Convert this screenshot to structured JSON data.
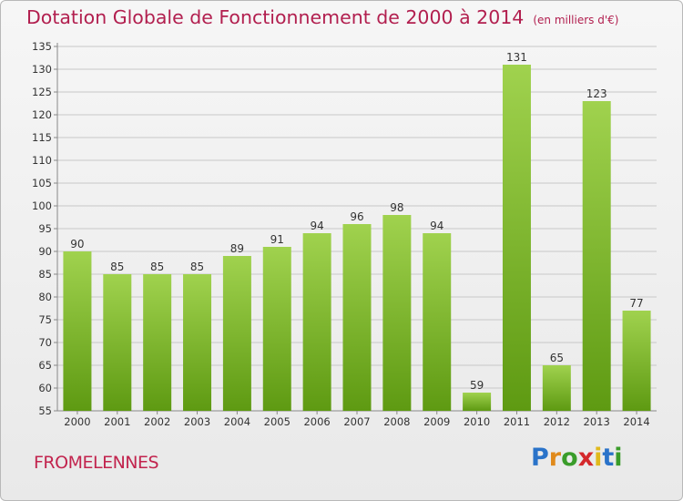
{
  "header": {
    "title": "Dotation Globale de Fonctionnement de 2000 à 2014",
    "unit_note": "(en milliers d'€)"
  },
  "footer": {
    "commune": "FROMELENNES",
    "logo_letters": [
      "P",
      "r",
      "o",
      "x",
      "i",
      "t",
      "i"
    ],
    "logo_colors": [
      "#2a73c9",
      "#e08a1c",
      "#3a9c2a",
      "#d4282b",
      "#e0b91c",
      "#2a73c9",
      "#3a9c2a"
    ]
  },
  "colors": {
    "bar_top": "#a0d24e",
    "bar_bottom": "#5e9a12",
    "title": "#b21f4f",
    "grid": "#c8c8c8"
  },
  "chart_data": {
    "type": "bar",
    "title": "Dotation Globale de Fonctionnement de 2000 à 2014",
    "subtitle": "(en milliers d'€)",
    "xlabel": "",
    "ylabel": "",
    "categories": [
      "2000",
      "2001",
      "2002",
      "2003",
      "2004",
      "2005",
      "2006",
      "2007",
      "2008",
      "2009",
      "2010",
      "2011",
      "2012",
      "2013",
      "2014"
    ],
    "values": [
      90,
      85,
      85,
      85,
      89,
      91,
      94,
      96,
      98,
      94,
      59,
      131,
      65,
      123,
      77
    ],
    "ylim": [
      55,
      135
    ],
    "yticks": [
      55,
      60,
      65,
      70,
      75,
      80,
      85,
      90,
      95,
      100,
      105,
      110,
      115,
      120,
      125,
      130,
      135
    ],
    "grid": true,
    "legend": "none"
  }
}
